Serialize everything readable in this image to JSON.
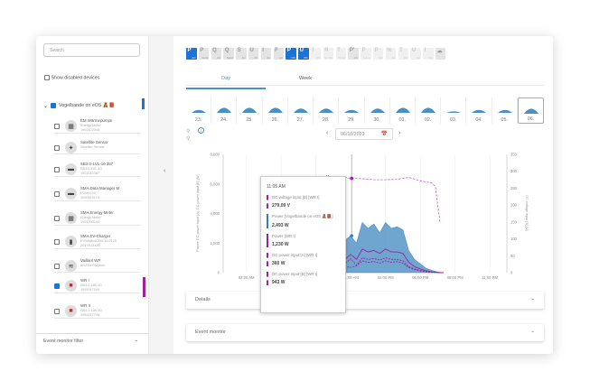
{
  "sidebar": {
    "search_placeholder": "Search",
    "show_disabled": "Show disabled devices",
    "group": "Vogelbande on eOS 🧸📕",
    "devices": [
      {
        "name": "EM Wärmepumpe",
        "type": "Energy Meter",
        "serial": "1901422345",
        "icon": "meter-icon",
        "checked": false
      },
      {
        "name": "Satellite Sensor",
        "type": "Satellite Sensor",
        "serial": "",
        "icon": "satellite-icon",
        "checked": false
      },
      {
        "name": "SB3.0-1VL-10 387",
        "type": "SB3.0-1VL-10",
        "serial": "1901010387",
        "icon": "inverter-icon",
        "checked": false
      },
      {
        "name": "SMA Data Manager M",
        "type": "EDMM-10",
        "serial": "3000515173",
        "icon": "data-manager-icon",
        "checked": false
      },
      {
        "name": "SMA Energy Meter",
        "type": "Energy Meter",
        "serial": "1901700243",
        "icon": "meter-icon",
        "checked": false
      },
      {
        "name": "SMA EV-Charger",
        "type": "EVWallbox2047A13120",
        "serial": "2047A13120",
        "icon": "ev-charger-icon",
        "checked": false
      },
      {
        "name": "Vaillant WP",
        "type": "aroTHERM plus",
        "serial": "",
        "icon": "heat-pump-icon",
        "checked": false
      },
      {
        "name": "WR I",
        "type": "SB4.0-1AV-40",
        "serial": "1992017099",
        "icon": "inverter-red-icon",
        "checked": true
      },
      {
        "name": "WR II",
        "type": "SB4.0-1AV-40",
        "serial": "1992017744",
        "icon": "inverter-red-icon",
        "checked": false
      }
    ],
    "event_filter": "Event monitor filter"
  },
  "toolbar": [
    {
      "l": "P",
      "s": "AC",
      "on": true
    },
    {
      "l": "P",
      "s": "Setpt"
    },
    {
      "l": "Q",
      "s": "AC"
    },
    {
      "l": "Q",
      "s": "Setpt"
    },
    {
      "l": "S",
      "s": "AC"
    },
    {
      "l": "U",
      "s": "AC"
    },
    {
      "l": "I",
      "s": "AC"
    },
    {
      "l": "F",
      "s": "AC"
    },
    {
      "l": "P",
      "s": "DC",
      "on": true
    },
    {
      "l": "U",
      "s": "DC",
      "on": true
    },
    {
      "l": "I",
      "s": "DC",
      "dim": true
    },
    {
      "l": "R",
      "s": "iso DC",
      "dim": true
    },
    {
      "l": "T",
      "s": "Tmod",
      "dim": true
    },
    {
      "l": "P'",
      "s": "AC"
    },
    {
      "l": "P",
      "s": "Lump",
      "dim": true
    },
    {
      "l": "P",
      "s": "bat",
      "dim": true
    },
    {
      "l": "%",
      "s": "bat",
      "dim": true
    },
    {
      "l": "T",
      "s": "bat",
      "dim": true
    },
    {
      "l": "U",
      "s": "bat",
      "dim": true
    },
    {
      "l": "I",
      "s": "bat",
      "dim": true
    },
    {
      "l": "☁",
      "s": "",
      "icon": "weather-icon"
    }
  ],
  "tabs": [
    "Day",
    "Week"
  ],
  "active_tab": "Day",
  "days": [
    "23.",
    "24.",
    "25.",
    "26.",
    "27.",
    "28.",
    "29.",
    "30.",
    "01.",
    "02.",
    "03.",
    "04.",
    "05.",
    "06."
  ],
  "selected_day": "06.",
  "date": "06/10/2023",
  "accordions": [
    "Details",
    "Event monitor"
  ],
  "colors": {
    "accent": "#1a73d9",
    "power_area": "#4a90c4",
    "wr": "#a020a0"
  },
  "tooltip": {
    "time": "11:05 AM",
    "entries": [
      {
        "label": "DC voltage input [B] [WR I]",
        "value": "279,09 V",
        "style": "dash"
      },
      {
        "label": "Power [Vogelbande on eOS 🧸📕]",
        "value": "2,493 W",
        "style": "blue"
      },
      {
        "label": "Power [WR I]",
        "value": "1,230 W",
        "style": "solid"
      },
      {
        "label": "DC power input [A] [WR I]",
        "value": "360 W",
        "style": "dash"
      },
      {
        "label": "DC power input [B] [WR I]",
        "value": "943 W",
        "style": "dash"
      }
    ]
  },
  "chart_data": {
    "type": "area",
    "ylabel": "Power, DC power input [A], DC power input [B] [W]",
    "y2label": "DC voltage input [B] [V]",
    "ylim": [
      0,
      8000
    ],
    "y2lim": [
      0,
      350
    ],
    "yticks": [
      "0",
      "2,000",
      "4,000",
      "6,000",
      "8,000"
    ],
    "y2ticks": [
      "0",
      "50",
      "100",
      "150",
      "200",
      "250",
      "300",
      "350"
    ],
    "xticks": [
      "02:00 AM",
      "05:00 AM",
      "08:00 AM",
      "11:00 AM",
      "02:00 PM",
      "05:00 PM",
      "08:00 PM",
      "11:00 PM"
    ],
    "x_hours": [
      7,
      7.5,
      8,
      8.5,
      9,
      9.5,
      10,
      10.5,
      11,
      11.5,
      12,
      12.5,
      13,
      13.5,
      14,
      14.5,
      15,
      15.5,
      16,
      16.5,
      17,
      17.5,
      18,
      18.5,
      19
    ],
    "series": [
      {
        "name": "Power [Vogelbande on eOS]",
        "style": "area",
        "values": [
          0,
          200,
          600,
          1200,
          2500,
          1500,
          3000,
          2200,
          2500,
          2000,
          3400,
          3000,
          3300,
          2700,
          3400,
          3000,
          3100,
          2900,
          1500,
          900,
          600,
          300,
          150,
          50,
          0
        ]
      },
      {
        "name": "Power [WR I]",
        "style": "solid",
        "values": [
          0,
          50,
          200,
          400,
          800,
          600,
          1300,
          900,
          1230,
          900,
          1600,
          1400,
          1500,
          1300,
          1600,
          1400,
          1400,
          1300,
          700,
          400,
          250,
          120,
          50,
          10,
          0
        ]
      },
      {
        "name": "DC power input [A] [WR I]",
        "style": "dash",
        "values": [
          0,
          20,
          100,
          200,
          400,
          300,
          600,
          400,
          360,
          450,
          800,
          700,
          750,
          650,
          800,
          700,
          750,
          650,
          350,
          200,
          120,
          60,
          20,
          5,
          0
        ]
      },
      {
        "name": "DC power input [B] [WR I]",
        "style": "dash",
        "values": [
          0,
          30,
          150,
          300,
          500,
          400,
          800,
          600,
          943,
          500,
          1000,
          900,
          950,
          850,
          1000,
          900,
          900,
          800,
          400,
          250,
          150,
          70,
          30,
          5,
          0
        ]
      }
    ],
    "voltage": {
      "name": "DC voltage input [B] [WR I]",
      "x_hours": [
        7.5,
        8,
        8.5,
        9,
        9.5,
        10,
        11,
        12,
        13,
        14,
        15,
        16,
        17,
        18,
        18.3,
        18.5,
        18.7
      ],
      "values": [
        100,
        240,
        270,
        290,
        270,
        285,
        279,
        278,
        275,
        275,
        276,
        282,
        272,
        265,
        255,
        200,
        150
      ]
    },
    "cursor_hour": 11.08
  }
}
